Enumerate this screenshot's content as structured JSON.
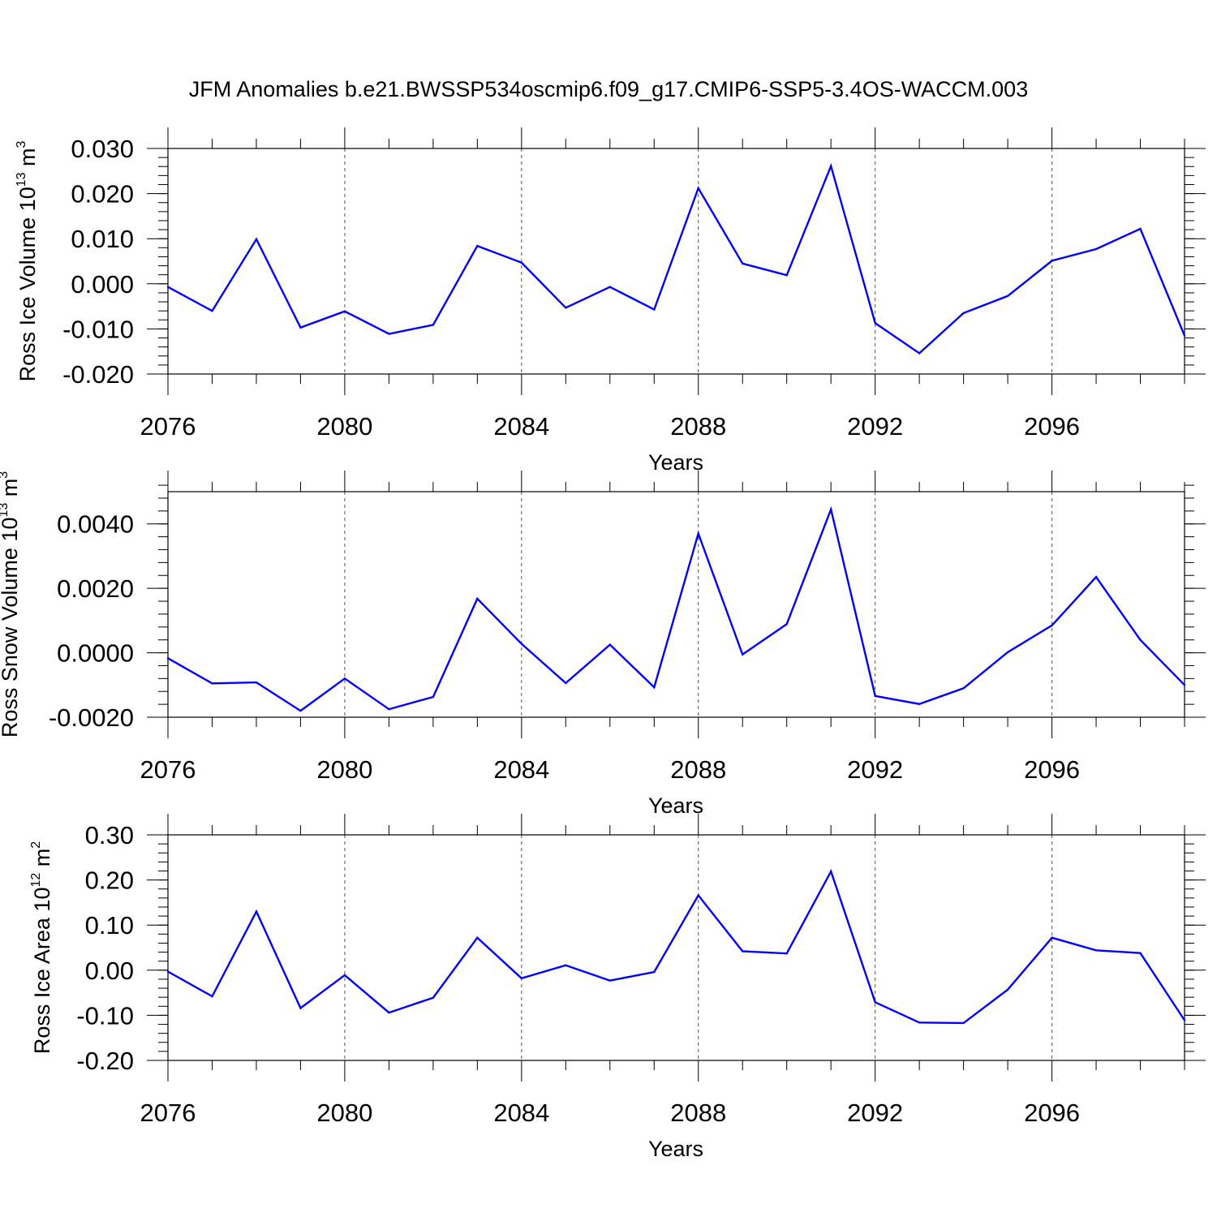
{
  "figure_title": "JFM Anomalies b.e21.BWSSP534oscmip6.f09_g17.CMIP6-SSP5-3.4OS-WACCM.003",
  "colors": {
    "line": "#0000ff",
    "axis": "#000000",
    "grid": "#555555"
  },
  "chart_data": [
    {
      "type": "line",
      "title": "",
      "xlabel": "Years",
      "ylabel_text": "Ross Ice Volume 10",
      "ylabel_exp": "13",
      "ylabel_unit": " m",
      "ylabel_unit_exp": "3",
      "xlim": [
        2076,
        2099
      ],
      "ylim": [
        -0.02,
        0.03
      ],
      "x_ticks": [
        2076,
        2080,
        2084,
        2088,
        2092,
        2096
      ],
      "x_tick_labels": [
        "2076",
        "2080",
        "2084",
        "2088",
        "2092",
        "2096"
      ],
      "y_ticks": [
        -0.02,
        -0.01,
        0.0,
        0.01,
        0.02,
        0.03
      ],
      "y_tick_labels": [
        "-0.020",
        "-0.010",
        "0.000",
        "0.010",
        "0.020",
        "0.030"
      ],
      "y_minor_step": 0.002,
      "grid": "vertical dashed at major x ticks",
      "series": [
        {
          "name": "Ross Ice Volume",
          "x": [
            2076,
            2077,
            2078,
            2079,
            2080,
            2081,
            2082,
            2083,
            2084,
            2085,
            2086,
            2087,
            2088,
            2089,
            2090,
            2091,
            2092,
            2093,
            2094,
            2095,
            2096,
            2097,
            2098,
            2099
          ],
          "values": [
            -0.0007,
            -0.006,
            0.0099,
            -0.0097,
            -0.0061,
            -0.0111,
            -0.0091,
            0.0084,
            0.0047,
            -0.0053,
            -0.0007,
            -0.0057,
            0.0212,
            0.0045,
            0.0019,
            0.0261,
            -0.0087,
            -0.0154,
            -0.0065,
            -0.0027,
            0.0051,
            0.0077,
            0.0122,
            -0.0115
          ]
        }
      ]
    },
    {
      "type": "line",
      "title": "",
      "xlabel": "Years",
      "ylabel_text": "Ross Snow Volume 10",
      "ylabel_exp": "13",
      "ylabel_unit": " m",
      "ylabel_unit_exp": "3",
      "xlim": [
        2076,
        2099
      ],
      "ylim": [
        -0.002,
        0.005
      ],
      "x_ticks": [
        2076,
        2080,
        2084,
        2088,
        2092,
        2096
      ],
      "x_tick_labels": [
        "2076",
        "2080",
        "2084",
        "2088",
        "2092",
        "2096"
      ],
      "y_ticks": [
        -0.002,
        0.0,
        0.002,
        0.004
      ],
      "y_tick_labels": [
        "-0.0020",
        "0.0000",
        "0.0020",
        "0.0040"
      ],
      "y_minor_step": 0.0004,
      "grid": "vertical dashed at major x ticks",
      "series": [
        {
          "name": "Ross Snow Volume",
          "x": [
            2076,
            2077,
            2078,
            2079,
            2080,
            2081,
            2082,
            2083,
            2084,
            2085,
            2086,
            2087,
            2088,
            2089,
            2090,
            2091,
            2092,
            2093,
            2094,
            2095,
            2096,
            2097,
            2098,
            2099
          ],
          "values": [
            -0.00017,
            -0.00095,
            -0.00092,
            -0.0018,
            -0.0008,
            -0.00175,
            -0.00137,
            0.00168,
            0.00028,
            -0.00094,
            0.00025,
            -0.00107,
            0.0037,
            -5e-05,
            0.00089,
            0.00445,
            -0.00134,
            -0.00159,
            -0.0011,
            2e-05,
            0.00085,
            0.00235,
            0.0004,
            -0.001
          ]
        }
      ]
    },
    {
      "type": "line",
      "title": "",
      "xlabel": "Years",
      "ylabel_text": "Ross Ice Area 10",
      "ylabel_exp": "12",
      "ylabel_unit": " m",
      "ylabel_unit_exp": "2",
      "xlim": [
        2076,
        2099
      ],
      "ylim": [
        -0.2,
        0.3
      ],
      "x_ticks": [
        2076,
        2080,
        2084,
        2088,
        2092,
        2096
      ],
      "x_tick_labels": [
        "2076",
        "2080",
        "2084",
        "2088",
        "2092",
        "2096"
      ],
      "y_ticks": [
        -0.2,
        -0.1,
        0.0,
        0.1,
        0.2,
        0.3
      ],
      "y_tick_labels": [
        "-0.20",
        "-0.10",
        "0.00",
        "0.10",
        "0.20",
        "0.30"
      ],
      "y_minor_step": 0.02,
      "grid": "vertical dashed at major x ticks",
      "series": [
        {
          "name": "Ross Ice Area",
          "x": [
            2076,
            2077,
            2078,
            2079,
            2080,
            2081,
            2082,
            2083,
            2084,
            2085,
            2086,
            2087,
            2088,
            2089,
            2090,
            2091,
            2092,
            2093,
            2094,
            2095,
            2096,
            2097,
            2098,
            2099
          ],
          "values": [
            -0.003,
            -0.058,
            0.13,
            -0.084,
            -0.011,
            -0.094,
            -0.061,
            0.072,
            -0.018,
            0.011,
            -0.023,
            -0.004,
            0.166,
            0.042,
            0.037,
            0.219,
            -0.071,
            -0.116,
            -0.117,
            -0.043,
            0.072,
            0.044,
            0.038,
            -0.111
          ]
        }
      ]
    }
  ]
}
